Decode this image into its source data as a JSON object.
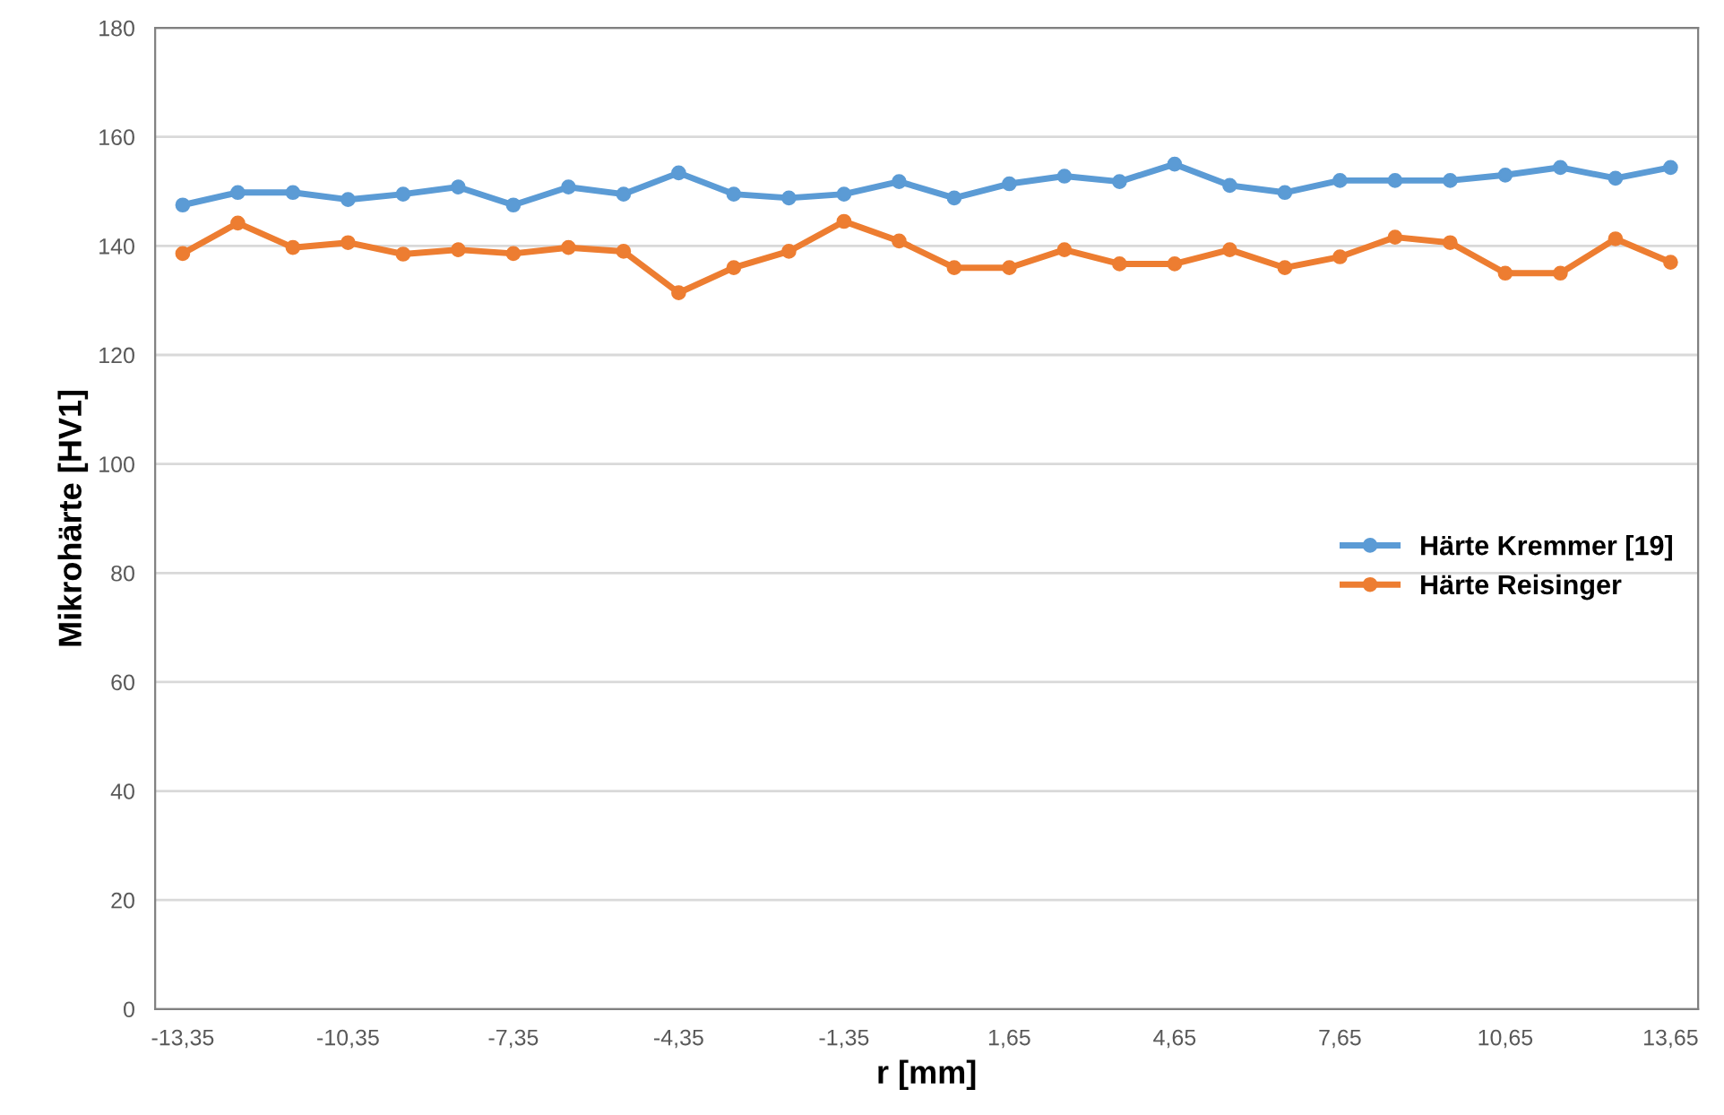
{
  "chart_data": {
    "type": "line",
    "xlabel": "r [mm]",
    "ylabel": "Mikrohärte [HV1]",
    "categories": [
      "-13,35",
      null,
      null,
      "-10,35",
      null,
      null,
      "-7,35",
      null,
      null,
      "-4,35",
      null,
      null,
      "-1,35",
      null,
      null,
      "1,65",
      null,
      null,
      "4,65",
      null,
      null,
      "7,65",
      null,
      null,
      "10,65",
      null,
      null,
      "13,65"
    ],
    "series": [
      {
        "name": "Härte Kremmer [19]",
        "color": "#5b9bd5",
        "values": [
          147.5,
          149.8,
          149.8,
          148.5,
          149.5,
          150.8,
          147.5,
          150.8,
          149.5,
          153.4,
          149.5,
          148.8,
          149.5,
          151.8,
          148.8,
          151.4,
          152.8,
          151.8,
          155,
          151.1,
          149.8,
          152,
          152,
          152,
          153,
          154.4,
          152.4,
          154.4
        ]
      },
      {
        "name": "Härte Reisinger",
        "color": "#ed7d31",
        "values": [
          138.6,
          144.2,
          139.7,
          140.6,
          138.5,
          139.3,
          138.6,
          139.7,
          139,
          131.4,
          136,
          139,
          144.5,
          140.9,
          136,
          136,
          139.3,
          136.7,
          136.7,
          139.3,
          136,
          138,
          141.6,
          140.6,
          135,
          135,
          141.3,
          137
        ]
      }
    ],
    "ylim": [
      0,
      180
    ],
    "yticks": [
      0,
      20,
      40,
      60,
      80,
      100,
      120,
      140,
      160,
      180
    ],
    "grid": "y",
    "legend": "right",
    "marker": "circle",
    "line_style": "solid"
  }
}
